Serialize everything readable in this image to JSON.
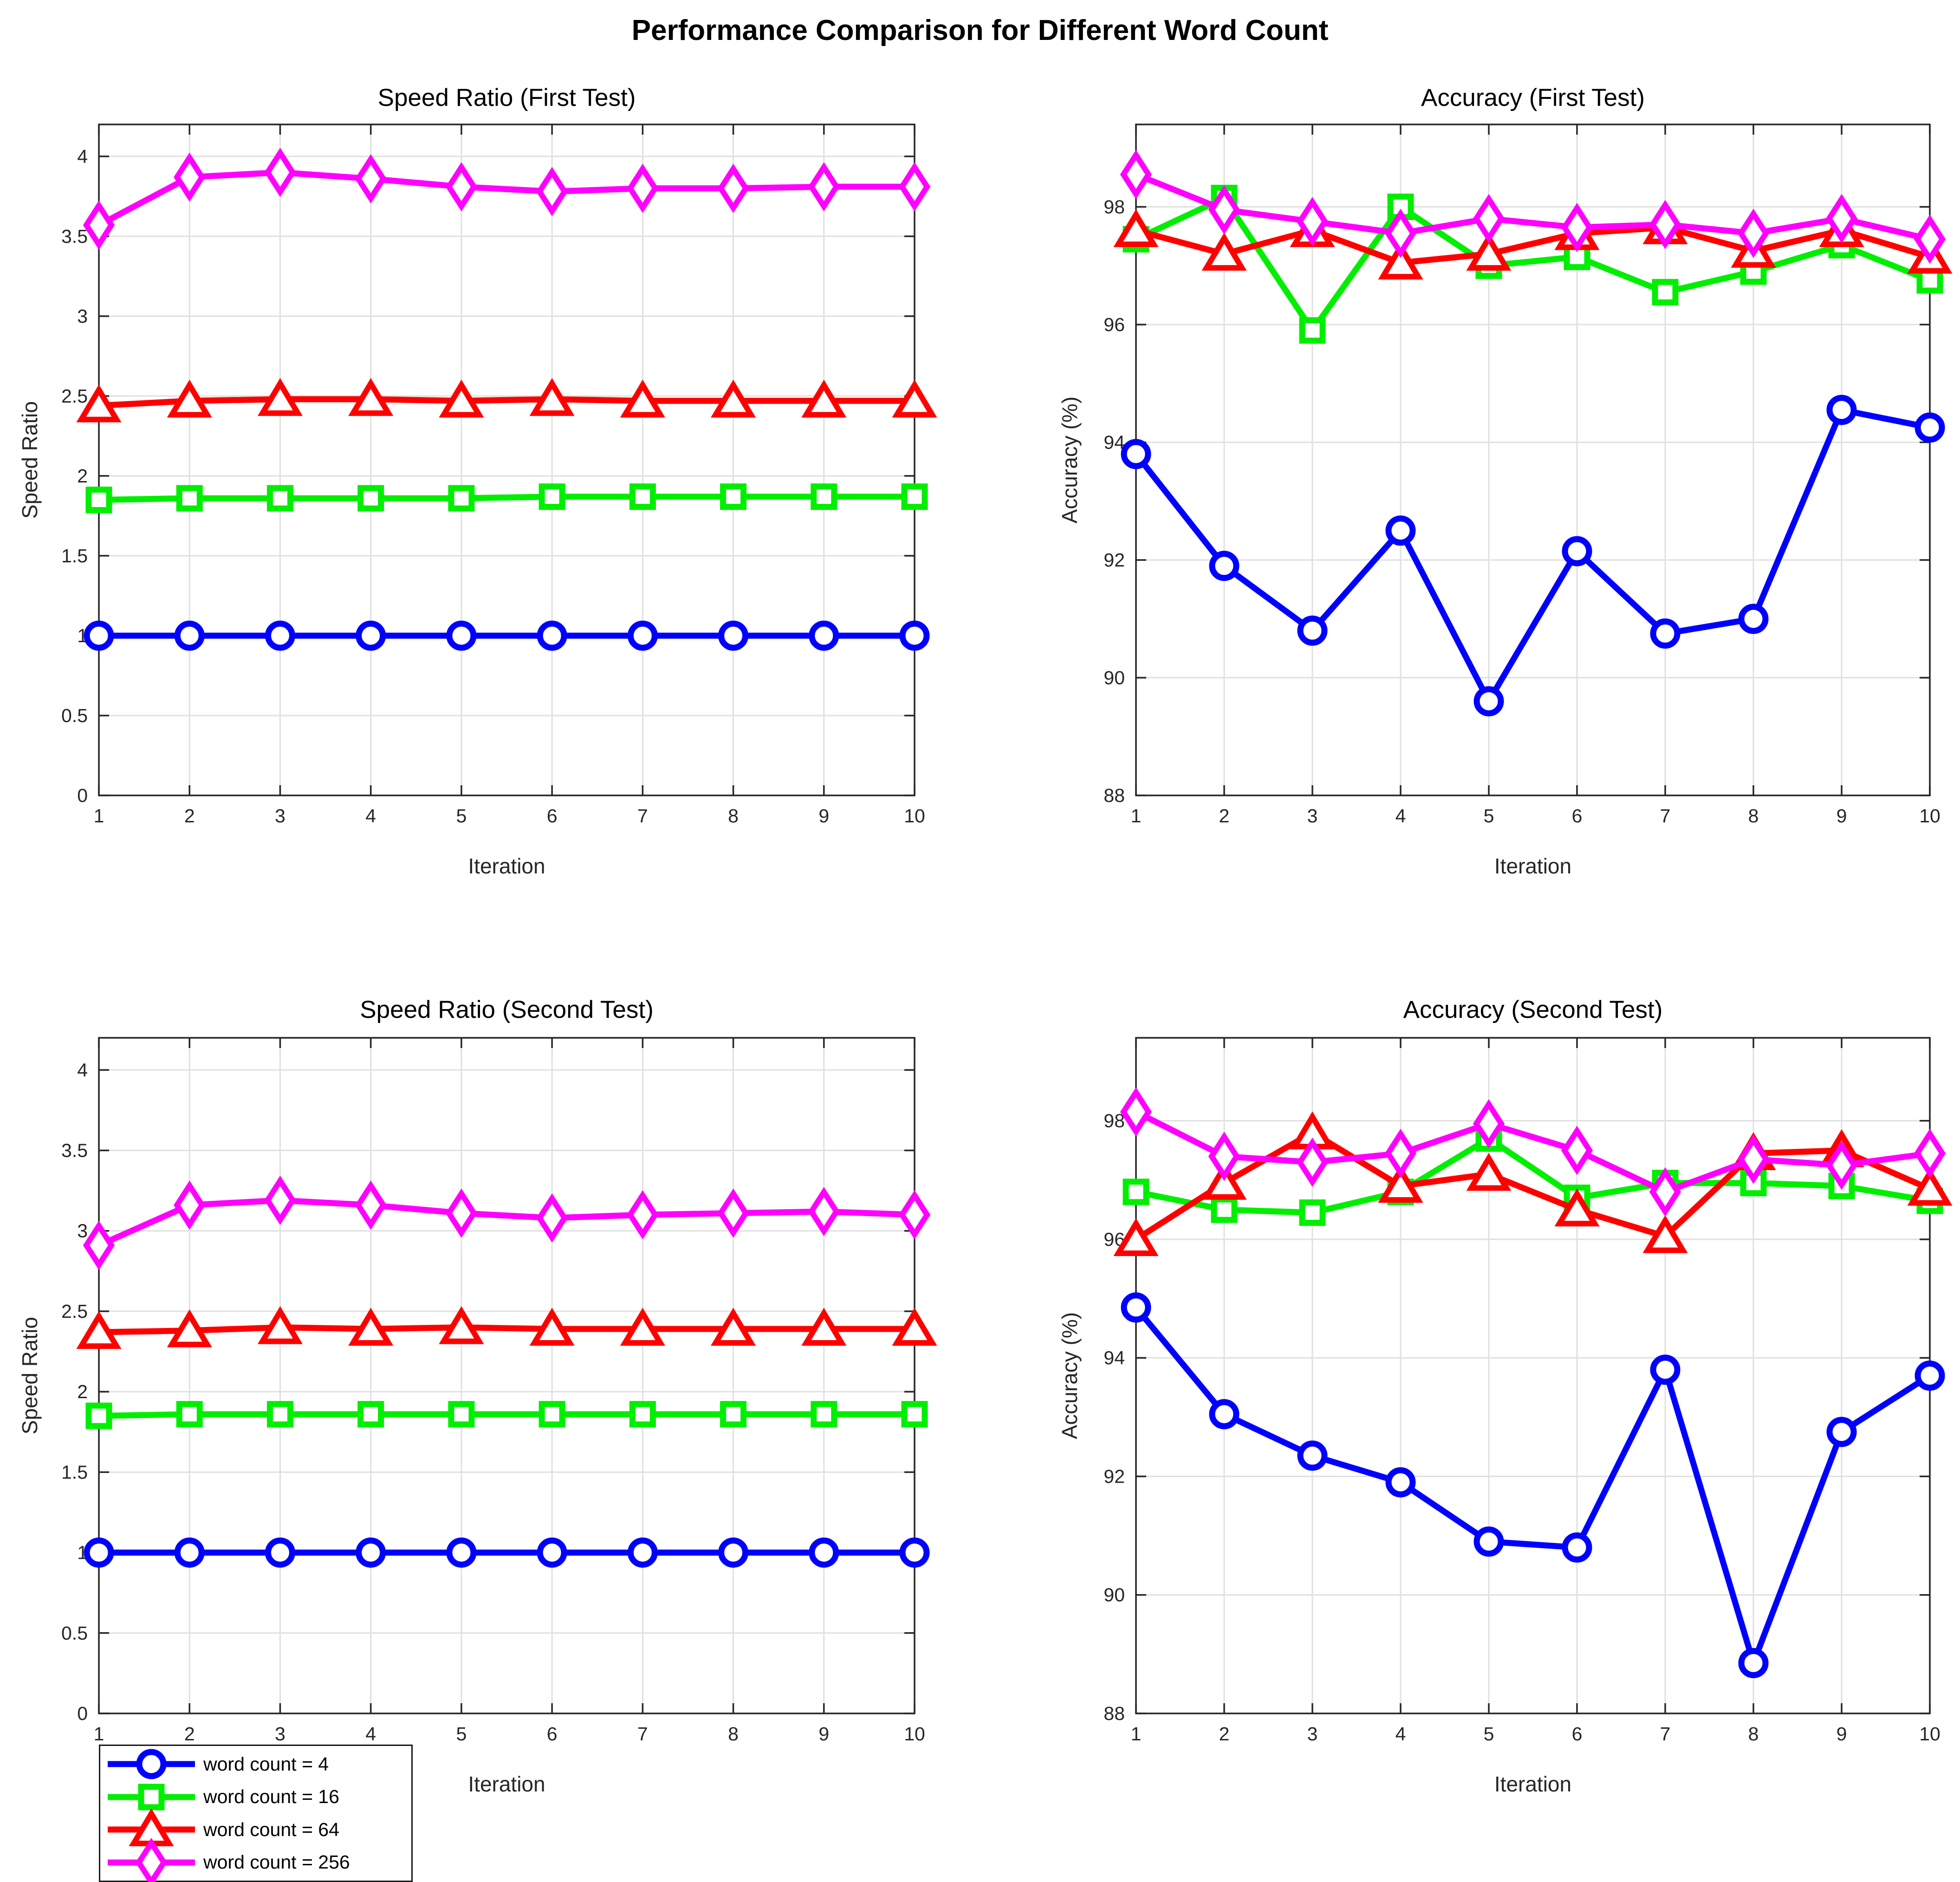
{
  "figure": {
    "title": "Performance Comparison for Different Word Count",
    "background": "#FFFFFF"
  },
  "axis_style": {
    "tick_label_color": "#262626",
    "axis_line_color": "#262626",
    "grid_color": "#E0E0E0",
    "title_color": "#000000"
  },
  "legend": {
    "position": "bottom-left",
    "entries": [
      {
        "label": "word count = 4",
        "color": "#0000FF",
        "marker": "circle"
      },
      {
        "label": "word count = 16",
        "color": "#00EE00",
        "marker": "square"
      },
      {
        "label": "word count = 64",
        "color": "#FF0000",
        "marker": "triangle"
      },
      {
        "label": "word count = 256",
        "color": "#FF00FF",
        "marker": "diamond"
      }
    ]
  },
  "chart_data": [
    {
      "id": "speed-first",
      "type": "line",
      "title": "Speed Ratio (First Test)",
      "xlabel": "Iteration",
      "ylabel": "Speed Ratio",
      "x": [
        1,
        2,
        3,
        4,
        5,
        6,
        7,
        8,
        9,
        10
      ],
      "xlim": [
        1,
        10
      ],
      "ylim": [
        0,
        4.2
      ],
      "xticks": [
        1,
        2,
        3,
        4,
        5,
        6,
        7,
        8,
        9,
        10
      ],
      "yticks": [
        0,
        0.5,
        1,
        1.5,
        2,
        2.5,
        3,
        3.5,
        4
      ],
      "grid": true,
      "series": [
        {
          "name": "word count = 4",
          "color": "#0000FF",
          "marker": "circle",
          "values": [
            1,
            1,
            1,
            1,
            1,
            1,
            1,
            1,
            1,
            1
          ]
        },
        {
          "name": "word count = 16",
          "color": "#00EE00",
          "marker": "square",
          "values": [
            1.85,
            1.86,
            1.86,
            1.86,
            1.86,
            1.87,
            1.87,
            1.87,
            1.87,
            1.87
          ]
        },
        {
          "name": "word count = 64",
          "color": "#FF0000",
          "marker": "triangle",
          "values": [
            2.44,
            2.47,
            2.48,
            2.48,
            2.47,
            2.48,
            2.47,
            2.47,
            2.47,
            2.47
          ]
        },
        {
          "name": "word count = 256",
          "color": "#FF00FF",
          "marker": "diamond",
          "values": [
            3.57,
            3.87,
            3.9,
            3.86,
            3.81,
            3.78,
            3.8,
            3.8,
            3.81,
            3.81
          ]
        }
      ]
    },
    {
      "id": "accuracy-first",
      "type": "line",
      "title": "Accuracy (First Test)",
      "xlabel": "Iteration",
      "ylabel": "Accuracy (%)",
      "x": [
        1,
        2,
        3,
        4,
        5,
        6,
        7,
        8,
        9,
        10
      ],
      "xlim": [
        1,
        10
      ],
      "ylim": [
        88,
        99.4
      ],
      "xticks": [
        1,
        2,
        3,
        4,
        5,
        6,
        7,
        8,
        9,
        10
      ],
      "yticks": [
        88,
        90,
        92,
        94,
        96,
        98
      ],
      "grid": true,
      "series": [
        {
          "name": "word count = 4",
          "color": "#0000FF",
          "marker": "circle",
          "values": [
            93.8,
            91.9,
            90.8,
            92.5,
            89.6,
            92.15,
            90.75,
            91,
            94.55,
            94.25
          ]
        },
        {
          "name": "word count = 16",
          "color": "#00EE00",
          "marker": "square",
          "values": [
            97.45,
            98.15,
            95.9,
            98,
            97,
            97.15,
            96.55,
            96.9,
            97.35,
            96.75
          ]
        },
        {
          "name": "word count = 64",
          "color": "#FF0000",
          "marker": "triangle",
          "values": [
            97.6,
            97.2,
            97.6,
            97.05,
            97.2,
            97.55,
            97.65,
            97.25,
            97.6,
            97.15
          ]
        },
        {
          "name": "word count = 256",
          "color": "#FF00FF",
          "marker": "diamond",
          "values": [
            98.55,
            97.95,
            97.75,
            97.55,
            97.8,
            97.65,
            97.7,
            97.55,
            97.8,
            97.45
          ]
        }
      ]
    },
    {
      "id": "speed-second",
      "type": "line",
      "title": "Speed Ratio (Second Test)",
      "xlabel": "Iteration",
      "ylabel": "Speed Ratio",
      "x": [
        1,
        2,
        3,
        4,
        5,
        6,
        7,
        8,
        9,
        10
      ],
      "xlim": [
        1,
        10
      ],
      "ylim": [
        0,
        4.2
      ],
      "xticks": [
        1,
        2,
        3,
        4,
        5,
        6,
        7,
        8,
        9,
        10
      ],
      "yticks": [
        0,
        0.5,
        1,
        1.5,
        2,
        2.5,
        3,
        3.5,
        4
      ],
      "grid": true,
      "series": [
        {
          "name": "word count = 4",
          "color": "#0000FF",
          "marker": "circle",
          "values": [
            1,
            1,
            1,
            1,
            1,
            1,
            1,
            1,
            1,
            1
          ]
        },
        {
          "name": "word count = 16",
          "color": "#00EE00",
          "marker": "square",
          "values": [
            1.85,
            1.86,
            1.86,
            1.86,
            1.86,
            1.86,
            1.86,
            1.86,
            1.86,
            1.86
          ]
        },
        {
          "name": "word count = 64",
          "color": "#FF0000",
          "marker": "triangle",
          "values": [
            2.37,
            2.38,
            2.4,
            2.39,
            2.4,
            2.39,
            2.39,
            2.39,
            2.39,
            2.39
          ]
        },
        {
          "name": "word count = 256",
          "color": "#FF00FF",
          "marker": "diamond",
          "values": [
            2.91,
            3.16,
            3.19,
            3.16,
            3.11,
            3.08,
            3.1,
            3.11,
            3.12,
            3.1
          ]
        }
      ]
    },
    {
      "id": "accuracy-second",
      "type": "line",
      "title": "Accuracy (Second Test)",
      "xlabel": "Iteration",
      "ylabel": "Accuracy (%)",
      "x": [
        1,
        2,
        3,
        4,
        5,
        6,
        7,
        8,
        9,
        10
      ],
      "xlim": [
        1,
        10
      ],
      "ylim": [
        88,
        99.4
      ],
      "xticks": [
        1,
        2,
        3,
        4,
        5,
        6,
        7,
        8,
        9,
        10
      ],
      "yticks": [
        88,
        90,
        92,
        94,
        96,
        98
      ],
      "grid": true,
      "series": [
        {
          "name": "word count = 4",
          "color": "#0000FF",
          "marker": "circle",
          "values": [
            94.85,
            93.05,
            92.35,
            91.9,
            90.9,
            90.8,
            93.8,
            88.85,
            92.75,
            93.7
          ]
        },
        {
          "name": "word count = 16",
          "color": "#00EE00",
          "marker": "square",
          "values": [
            96.8,
            96.5,
            96.45,
            96.8,
            97.7,
            96.7,
            96.95,
            96.95,
            96.9,
            96.65
          ]
        },
        {
          "name": "word count = 64",
          "color": "#FF0000",
          "marker": "triangle",
          "values": [
            96,
            96.95,
            97.8,
            96.9,
            97.1,
            96.5,
            96.05,
            97.45,
            97.5,
            96.85
          ]
        },
        {
          "name": "word count = 256",
          "color": "#FF00FF",
          "marker": "diamond",
          "values": [
            98.15,
            97.4,
            97.3,
            97.45,
            97.95,
            97.5,
            96.8,
            97.35,
            97.25,
            97.45
          ]
        }
      ]
    }
  ]
}
